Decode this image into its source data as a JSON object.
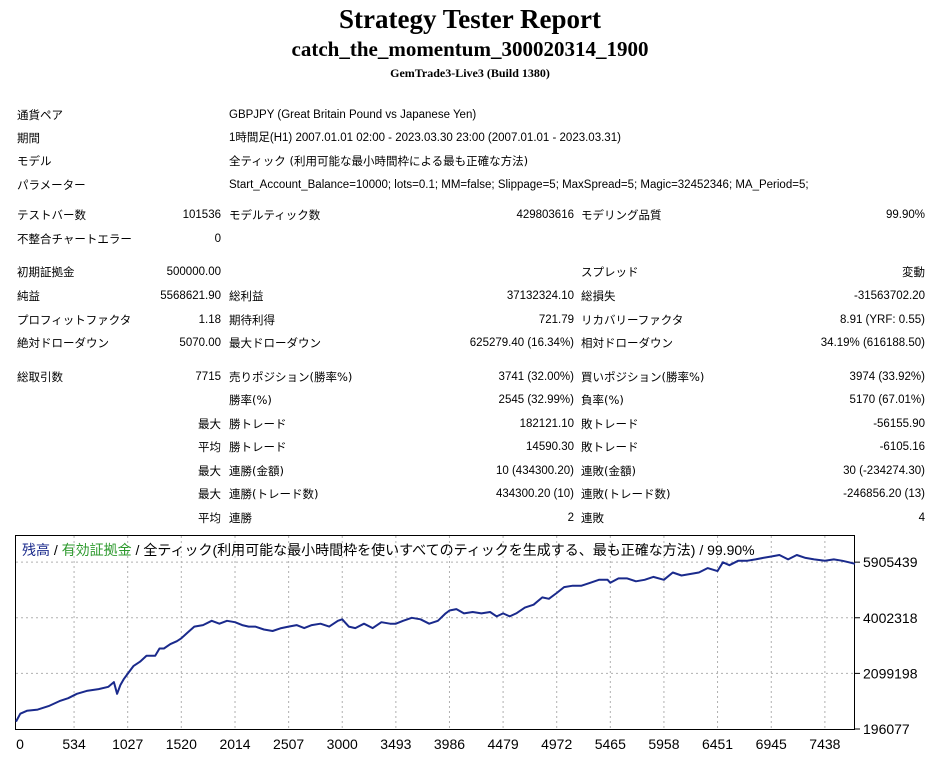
{
  "header": {
    "title": "Strategy Tester Report",
    "expert": "catch_the_momentum_300020314_1900",
    "server": "GemTrade3-Live3 (Build 1380)"
  },
  "settings": [
    {
      "label": "通貨ペア",
      "value": "GBPJPY (Great Britain Pound vs Japanese Yen)"
    },
    {
      "label": "期間",
      "value": "1時間足(H1) 2007.01.01 02:00 - 2023.03.30 23:00 (2007.01.01 - 2023.03.31)"
    },
    {
      "label": "モデル",
      "value": "全ティック (利用可能な最小時間枠による最も正確な方法)"
    },
    {
      "label": "パラメーター",
      "value": "Start_Account_Balance=10000; lots=0.1; MM=false; Slippage=5; MaxSpread=5; Magic=32452346; MA_Period=5;"
    }
  ],
  "stats": {
    "bars_label": "テストバー数",
    "bars": "101536",
    "ticks_label": "モデルティック数",
    "ticks": "429803616",
    "quality_label": "モデリング品質",
    "quality": "99.90%",
    "mismatch_label": "不整合チャートエラー",
    "mismatch": "0",
    "deposit_label": "初期証拠金",
    "deposit": "500000.00",
    "spread_label": "スプレッド",
    "spread": "変動",
    "net_label": "純益",
    "net": "5568621.90",
    "gross_profit_label": "総利益",
    "gross_profit": "37132324.10",
    "gross_loss_label": "総損失",
    "gross_loss": "-31563702.20",
    "pf_label": "プロフィットファクタ",
    "pf": "1.18",
    "expected_label": "期待利得",
    "expected": "721.79",
    "recovery_label": "リカバリーファクタ",
    "recovery": "8.91 (YRF: 0.55)",
    "abs_dd_label": "絶対ドローダウン",
    "abs_dd": "5070.00",
    "max_dd_label": "最大ドローダウン",
    "max_dd": "625279.40 (16.34%)",
    "rel_dd_label": "相対ドローダウン",
    "rel_dd": "34.19% (616188.50)",
    "trades_label": "総取引数",
    "trades": "7715",
    "short_label": "売りポジション(勝率%)",
    "short": "3741 (32.00%)",
    "long_label": "買いポジション(勝率%)",
    "long": "3974 (33.92%)",
    "win_label": "勝率(%)",
    "win": "2545 (32.99%)",
    "loss_label": "負率(%)",
    "loss": "5170 (67.01%)",
    "max_prefix": "最大",
    "avg_prefix": "平均",
    "largest_win_label": "勝トレード",
    "largest_win": "182121.10",
    "largest_loss_label": "敗トレード",
    "largest_loss": "-56155.90",
    "avg_win_label": "勝トレード",
    "avg_win": "14590.30",
    "avg_loss_label": "敗トレード",
    "avg_loss": "-6105.16",
    "max_cons_wins_label": "連勝(金額)",
    "max_cons_wins": "10 (434300.20)",
    "max_cons_losses_label": "連敗(金額)",
    "max_cons_losses": "30 (-234274.30)",
    "max_cons_profit_label": "連勝(トレード数)",
    "max_cons_profit": "434300.20 (10)",
    "max_cons_loss_label": "連敗(トレード数)",
    "max_cons_loss": "-246856.20 (13)",
    "avg_cons_wins_label": "連勝",
    "avg_cons_wins": "2",
    "avg_cons_losses_label": "連敗",
    "avg_cons_losses": "4"
  },
  "chart_data": {
    "type": "line",
    "legend": {
      "balance": "残高",
      "sep1": " / ",
      "equity": "有効証拠金",
      "rest": " / 全ティック(利用可能な最小時間枠を使いすべてのティックを生成する、最も正確な方法) / 99.90%"
    },
    "colors": {
      "balance": "#1a2a8c",
      "equity": "#2e9a2e",
      "grid": "#b0b0b0"
    },
    "x_ticks": [
      0,
      534,
      1027,
      1520,
      2014,
      2507,
      3000,
      3493,
      3986,
      4479,
      4972,
      5465,
      5958,
      6451,
      6945,
      7438
    ],
    "y_ticks": [
      196077,
      2099198,
      4002318,
      5905439
    ],
    "xlim": [
      0,
      7715
    ],
    "ylim": [
      196077,
      6800000
    ],
    "grid": true,
    "series": [
      {
        "x": [
          0,
          40,
          100,
          200,
          300,
          400,
          480,
          560,
          650,
          760,
          850,
          900,
          930,
          960,
          990,
          1030,
          1080,
          1140,
          1200,
          1280,
          1320,
          1360,
          1420,
          1480,
          1520,
          1580,
          1640,
          1720,
          1800,
          1870,
          1940,
          2014,
          2080,
          2140,
          2200,
          2280,
          2360,
          2440,
          2507,
          2580,
          2650,
          2720,
          2800,
          2880,
          2960,
          3000,
          3060,
          3120,
          3200,
          3280,
          3360,
          3440,
          3493,
          3560,
          3640,
          3720,
          3800,
          3880,
          3950,
          3986,
          4050,
          4120,
          4200,
          4280,
          4360,
          4420,
          4479,
          4540,
          4600,
          4680,
          4760,
          4840,
          4900,
          4972,
          5040,
          5120,
          5200,
          5280,
          5360,
          5440,
          5465,
          5540,
          5620,
          5700,
          5780,
          5860,
          5958,
          6040,
          6120,
          6200,
          6280,
          6360,
          6451,
          6500,
          6560,
          6640,
          6720,
          6800,
          6870,
          6945,
          7020,
          7100,
          7180,
          7260,
          7340,
          7438,
          7520,
          7600,
          7660,
          7715
        ],
        "y": [
          450000,
          720000,
          820000,
          860000,
          980000,
          1150000,
          1250000,
          1400000,
          1500000,
          1560000,
          1640000,
          1800000,
          1400000,
          1700000,
          1900000,
          2100000,
          2350000,
          2500000,
          2700000,
          2700000,
          2950000,
          2950000,
          3100000,
          3200000,
          3300000,
          3500000,
          3700000,
          3750000,
          3900000,
          3800000,
          3900000,
          3850000,
          3750000,
          3700000,
          3700000,
          3600000,
          3550000,
          3650000,
          3700000,
          3750000,
          3650000,
          3750000,
          3800000,
          3700000,
          3900000,
          3950000,
          3700000,
          3650000,
          3800000,
          3650000,
          3850000,
          3800000,
          3800000,
          3900000,
          4000000,
          3950000,
          3800000,
          3900000,
          4150000,
          4250000,
          4300000,
          4150000,
          4200000,
          4150000,
          4200000,
          4050000,
          4150000,
          4050000,
          4150000,
          4350000,
          4450000,
          4700000,
          4650000,
          4850000,
          5050000,
          5100000,
          5100000,
          5200000,
          5300000,
          5300000,
          5200000,
          5350000,
          5350000,
          5250000,
          5300000,
          5400000,
          5300000,
          5550000,
          5450000,
          5500000,
          5550000,
          5700000,
          5600000,
          5900000,
          5800000,
          5950000,
          5950000,
          6000000,
          6050000,
          6100000,
          6150000,
          6000000,
          6150000,
          6050000,
          6000000,
          5950000,
          6000000,
          5950000,
          5900000,
          5850000
        ]
      }
    ]
  }
}
